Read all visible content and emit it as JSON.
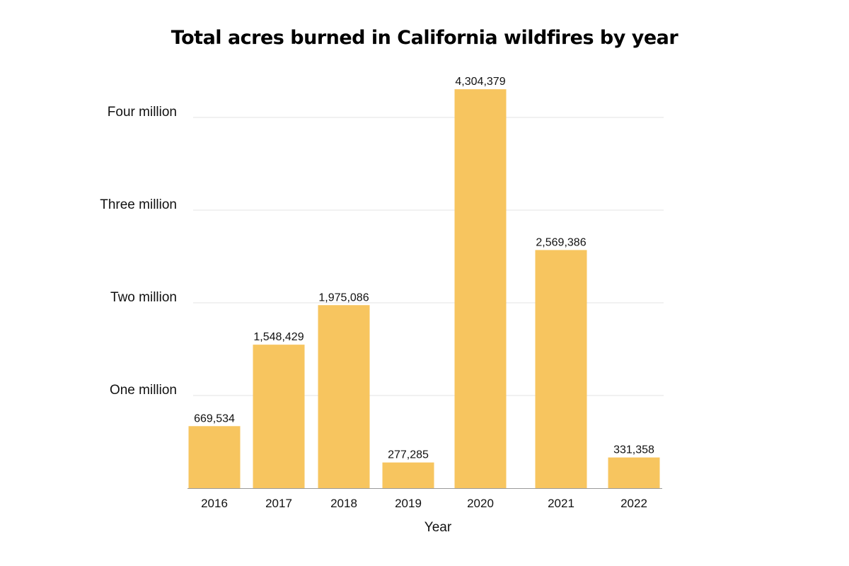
{
  "chart_data": {
    "type": "bar",
    "title": "Total acres burned in California wildfires by year",
    "xlabel": "Year",
    "ylabel": "",
    "categories": [
      "2016",
      "2017",
      "2018",
      "2019",
      "2020",
      "2021",
      "2022"
    ],
    "values": [
      669534,
      1548429,
      1975086,
      277285,
      4304379,
      2569386,
      331358
    ],
    "value_labels": [
      "669,534",
      "1,548,429",
      "1,975,086",
      "277,285",
      "4,304,379",
      "2,569,386",
      "331,358"
    ],
    "ylim": [
      0,
      4300000
    ],
    "yticks": [
      {
        "value": 1000000,
        "label": "One million"
      },
      {
        "value": 2000000,
        "label": "Two million"
      },
      {
        "value": 3000000,
        "label": "Three million"
      },
      {
        "value": 4000000,
        "label": "Four million"
      }
    ],
    "grid": true,
    "legend": "none",
    "bar_color": "#F7C55F",
    "grid_color": "#E3E3E3",
    "axis_color": "#9A9A9A"
  }
}
